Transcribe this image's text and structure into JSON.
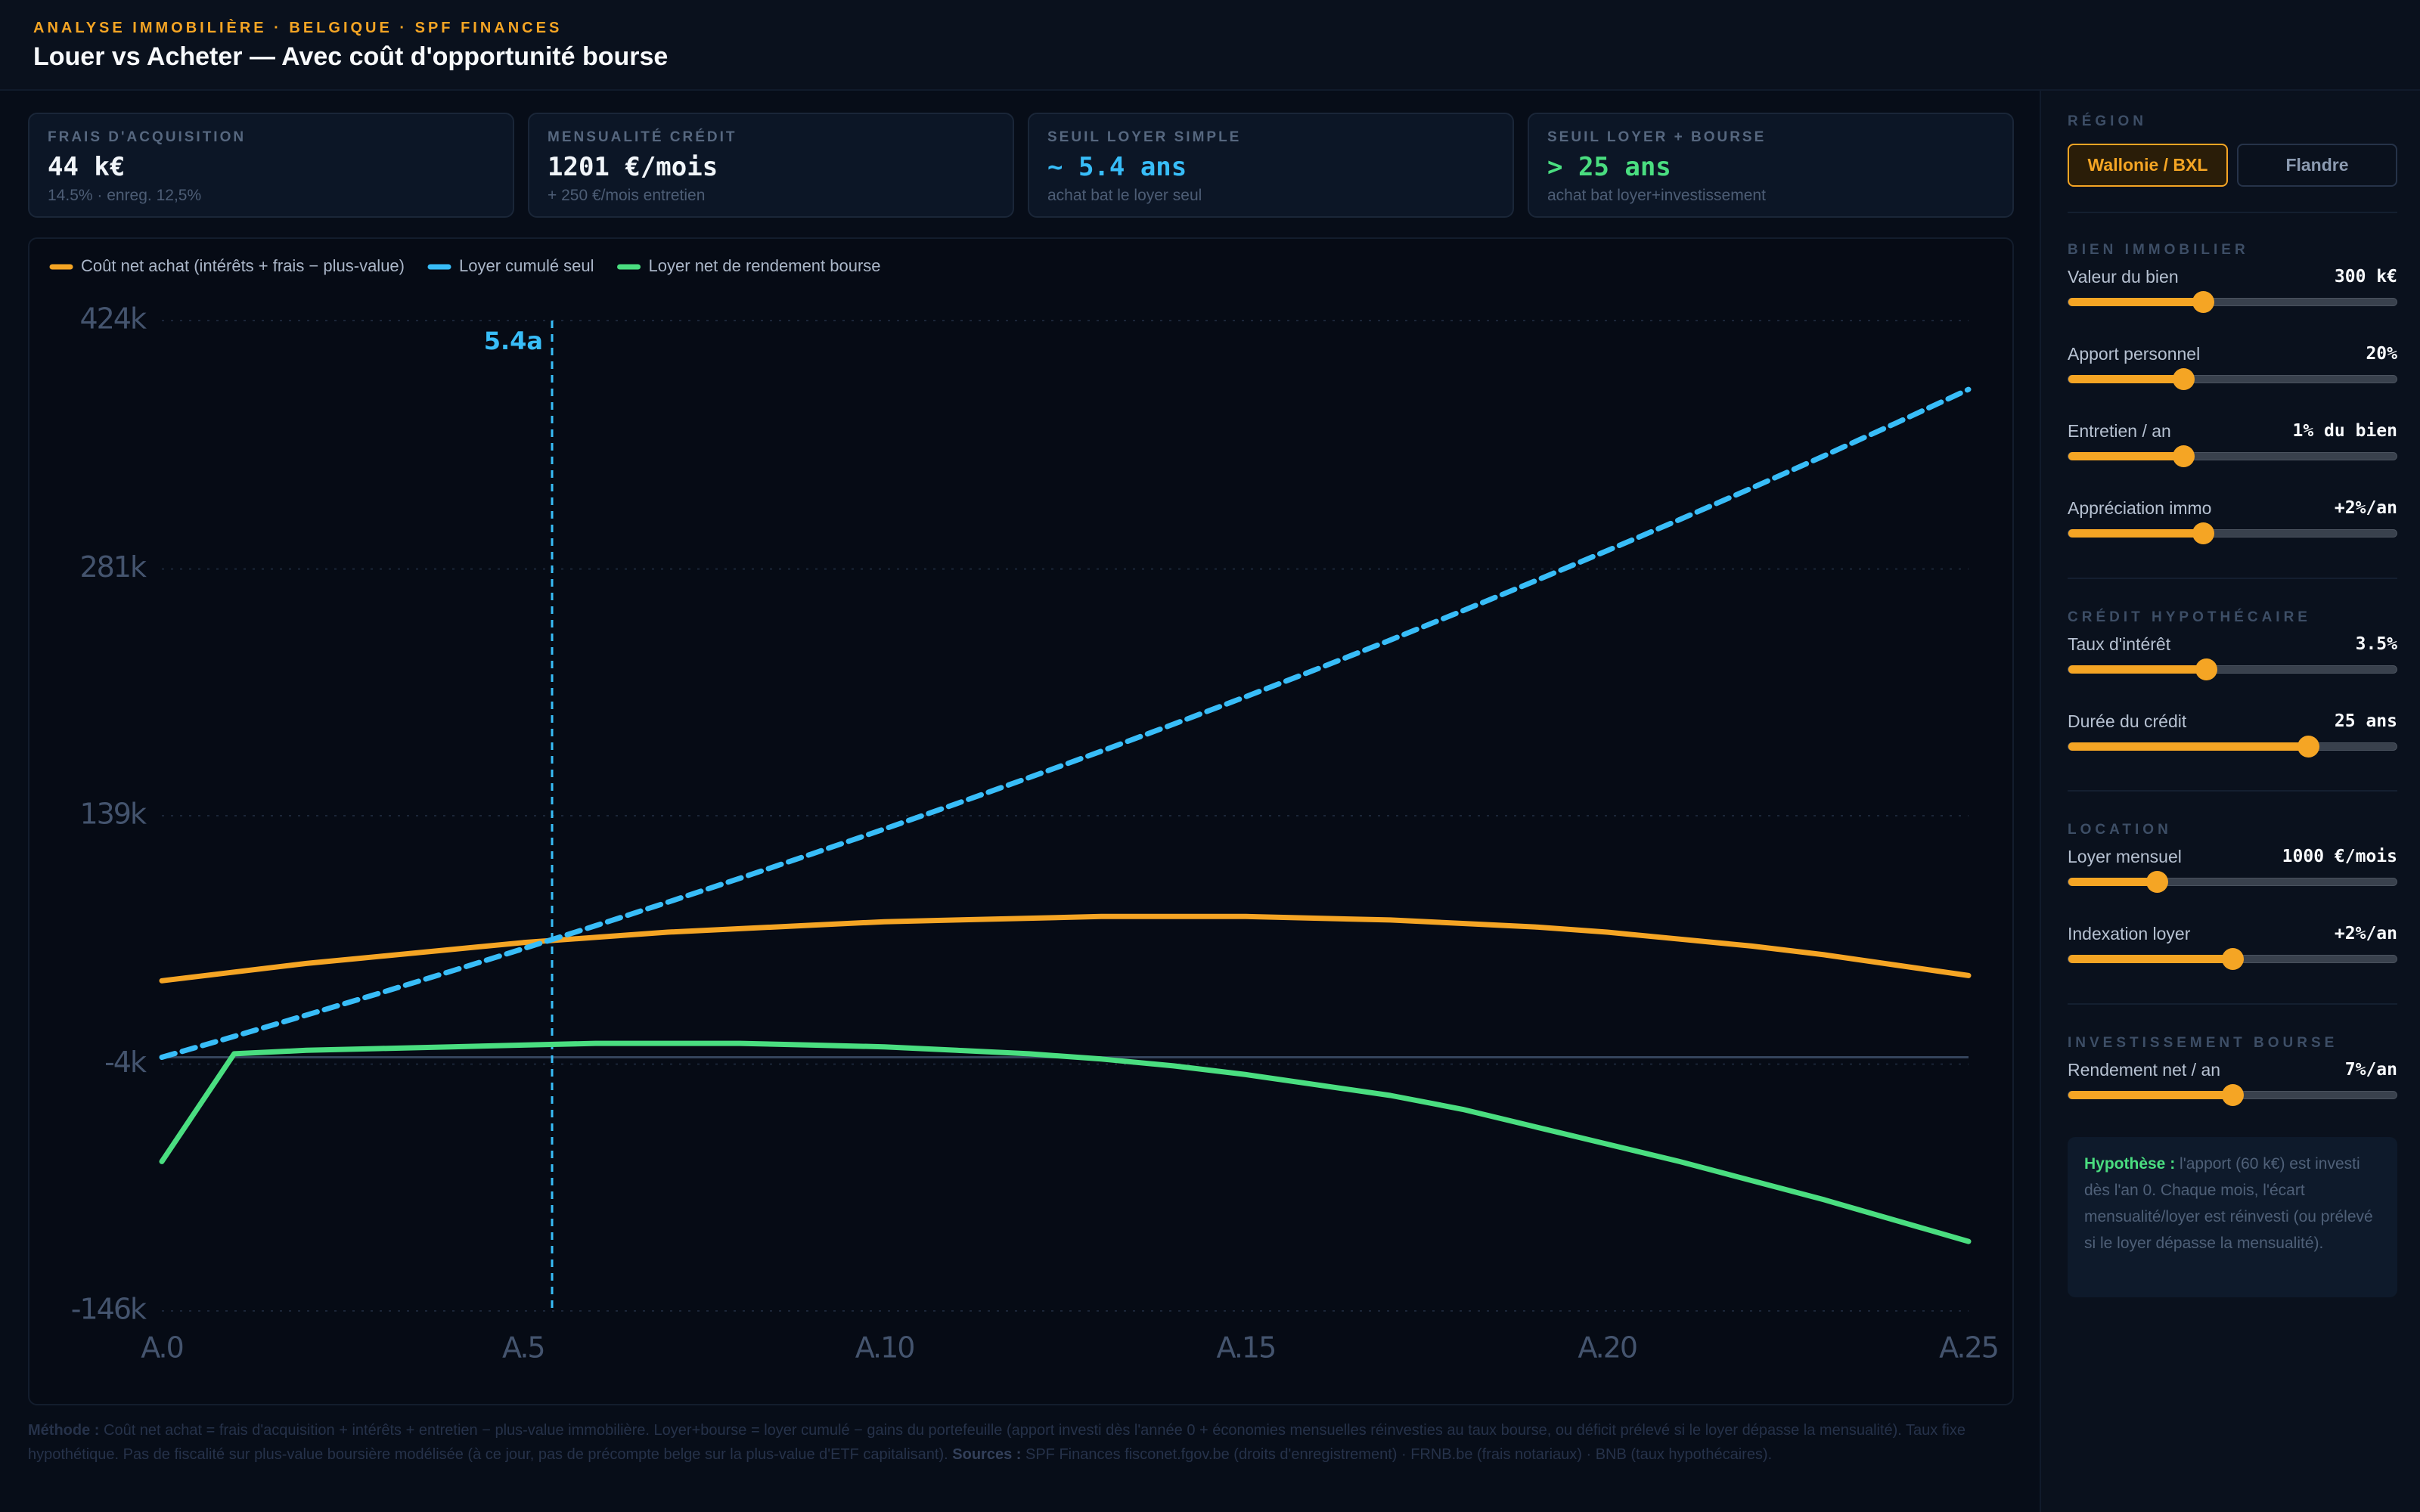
{
  "header": {
    "eyebrow": "ANALYSE IMMOBILIÈRE · BELGIQUE · SPF FINANCES",
    "title": "Louer vs Acheter — Avec coût d'opportunité bourse"
  },
  "kpis": [
    {
      "label": "FRAIS D'ACQUISITION",
      "value": "44 k€",
      "note": "14.5% · enreg. 12,5%",
      "color": "#f1f5f9"
    },
    {
      "label": "MENSUALITÉ CRÉDIT",
      "value": "1201 €/mois",
      "note": "+ 250 €/mois entretien",
      "color": "#f1f5f9"
    },
    {
      "label": "SEUIL LOYER SIMPLE",
      "value": "~ 5.4 ans",
      "note": "achat bat le loyer seul",
      "color": "#38bdf8"
    },
    {
      "label": "SEUIL LOYER + BOURSE",
      "value": "> 25 ans",
      "note": "achat bat loyer+investissement",
      "color": "#4ade80"
    }
  ],
  "chart_data": {
    "type": "line",
    "x": [
      0,
      1,
      2,
      3,
      4,
      5,
      6,
      7,
      8,
      9,
      10,
      11,
      12,
      13,
      14,
      15,
      16,
      17,
      18,
      19,
      20,
      21,
      22,
      23,
      24,
      25
    ],
    "series": [
      {
        "name": "Coût net achat (intérêts + frais − plus-value)",
        "color": "#f5a524",
        "style": "solid",
        "values": [
          44,
          49,
          54,
          58,
          62,
          66,
          69,
          72,
          74,
          76,
          78,
          79,
          80,
          81,
          81,
          81,
          80,
          79,
          77,
          75,
          72,
          68,
          64,
          59,
          53,
          47
        ]
      },
      {
        "name": "Loyer cumulé seul",
        "color": "#38bdf8",
        "style": "dashed",
        "values": [
          0,
          12,
          24.24,
          36.72,
          49.46,
          62.45,
          75.7,
          89.22,
          103,
          117.05,
          131.39,
          146.02,
          160.94,
          176.16,
          191.68,
          207.51,
          223.66,
          240.13,
          256.94,
          274.08,
          291.56,
          309.39,
          327.58,
          346.13,
          365.06,
          384.36
        ]
      },
      {
        "name": "Loyer net de rendement bourse",
        "color": "#4ade80",
        "style": "solid",
        "values": [
          -60,
          2,
          4,
          5,
          6,
          7,
          8,
          8,
          8,
          7,
          6,
          4,
          2,
          -1,
          -5,
          -10,
          -16,
          -22,
          -30,
          -40,
          -50,
          -60,
          -71,
          -82,
          -94,
          -106
        ]
      }
    ],
    "xlim": [
      0,
      25
    ],
    "xticks": [
      {
        "value": 0,
        "label": "A.0"
      },
      {
        "value": 5,
        "label": "A.5"
      },
      {
        "value": 10,
        "label": "A.10"
      },
      {
        "value": 15,
        "label": "A.15"
      },
      {
        "value": 20,
        "label": "A.20"
      },
      {
        "value": 25,
        "label": "A.25"
      }
    ],
    "ylim": [
      -146,
      424
    ],
    "yticks": [
      {
        "value": 424,
        "label": "424k"
      },
      {
        "value": 281,
        "label": "281k"
      },
      {
        "value": 139,
        "label": "139k"
      },
      {
        "value": -4,
        "label": "-4k"
      },
      {
        "value": -146,
        "label": "-146k"
      }
    ],
    "grid": true,
    "annotations": [
      {
        "x": 5.4,
        "label": "5.4a",
        "color": "#38bdf8"
      }
    ]
  },
  "sidebar": {
    "region": {
      "title": "RÉGION",
      "options": [
        "Wallonie / BXL",
        "Flandre"
      ]
    },
    "sections": [
      {
        "title": "BIEN IMMOBILIER",
        "sliders": [
          {
            "label": "Valeur du bien",
            "value": "300 k€"
          },
          {
            "label": "Apport personnel",
            "value": "20%"
          },
          {
            "label": "Entretien / an",
            "value": "1% du bien"
          },
          {
            "label": "Appréciation immo",
            "value": "+2%/an"
          }
        ]
      },
      {
        "title": "CRÉDIT HYPOTHÉCAIRE",
        "sliders": [
          {
            "label": "Taux d'intérêt",
            "value": "3.5%"
          },
          {
            "label": "Durée du crédit",
            "value": "25 ans"
          }
        ]
      },
      {
        "title": "LOCATION",
        "sliders": [
          {
            "label": "Loyer mensuel",
            "value": "1000 €/mois"
          },
          {
            "label": "Indexation loyer",
            "value": "+2%/an"
          }
        ]
      },
      {
        "title": "INVESTISSEMENT BOURSE",
        "sliders": [
          {
            "label": "Rendement net / an",
            "value": "7%/an"
          }
        ]
      }
    ],
    "hypothesis": {
      "lead": "Hypothèse :",
      "text": "l'apport (60 k€) est investi dès l'an 0. Chaque mois, l'écart mensualité/loyer est réinvesti (ou prélevé si le loyer dépasse la mensualité)."
    }
  },
  "footer": {
    "method_lead": "Méthode :",
    "method": "Coût net achat = frais d'acquisition + intérêts + entretien − plus-value immobilière. Loyer+bourse = loyer cumulé − gains du portefeuille (apport investi dès l'année 0 + économies mensuelles réinvesties au taux bourse, ou déficit prélevé si le loyer dépasse la mensualité). Taux fixe hypothétique. Pas de fiscalité sur plus-value boursière modélisée (à ce jour, pas de précompte belge sur la plus-value d'ETF capitalisant).",
    "sources_lead": "Sources :",
    "sources": "SPF Finances fisconet.fgov.be (droits d'enregistrement) · FRNB.be (frais notariaux) · BNB (taux hypothécaires)."
  }
}
